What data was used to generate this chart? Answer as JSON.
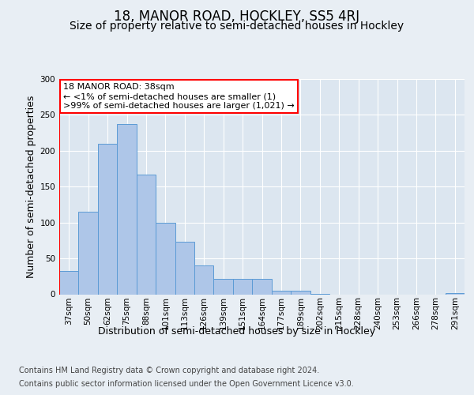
{
  "title": "18, MANOR ROAD, HOCKLEY, SS5 4RJ",
  "subtitle": "Size of property relative to semi-detached houses in Hockley",
  "xlabel": "Distribution of semi-detached houses by size in Hockley",
  "ylabel": "Number of semi-detached properties",
  "categories": [
    "37sqm",
    "50sqm",
    "62sqm",
    "75sqm",
    "88sqm",
    "101sqm",
    "113sqm",
    "126sqm",
    "139sqm",
    "151sqm",
    "164sqm",
    "177sqm",
    "189sqm",
    "202sqm",
    "215sqm",
    "228sqm",
    "240sqm",
    "253sqm",
    "266sqm",
    "278sqm",
    "291sqm"
  ],
  "values": [
    33,
    115,
    210,
    237,
    167,
    100,
    73,
    40,
    21,
    21,
    21,
    5,
    5,
    1,
    0,
    0,
    0,
    0,
    0,
    0,
    2
  ],
  "bar_color": "#aec6e8",
  "bar_edge_color": "#5b9bd5",
  "highlight_color": "#ff0000",
  "background_color": "#e8eef4",
  "plot_bg_color": "#dce6f0",
  "annotation_box_text": "18 MANOR ROAD: 38sqm\n← <1% of semi-detached houses are smaller (1)\n>99% of semi-detached houses are larger (1,021) →",
  "annotation_box_color": "#ff0000",
  "footer_line1": "Contains HM Land Registry data © Crown copyright and database right 2024.",
  "footer_line2": "Contains public sector information licensed under the Open Government Licence v3.0.",
  "ylim": [
    0,
    300
  ],
  "yticks": [
    0,
    50,
    100,
    150,
    200,
    250,
    300
  ],
  "title_fontsize": 12,
  "subtitle_fontsize": 10,
  "axis_label_fontsize": 9,
  "tick_fontsize": 7.5,
  "annotation_fontsize": 8,
  "footer_fontsize": 7
}
